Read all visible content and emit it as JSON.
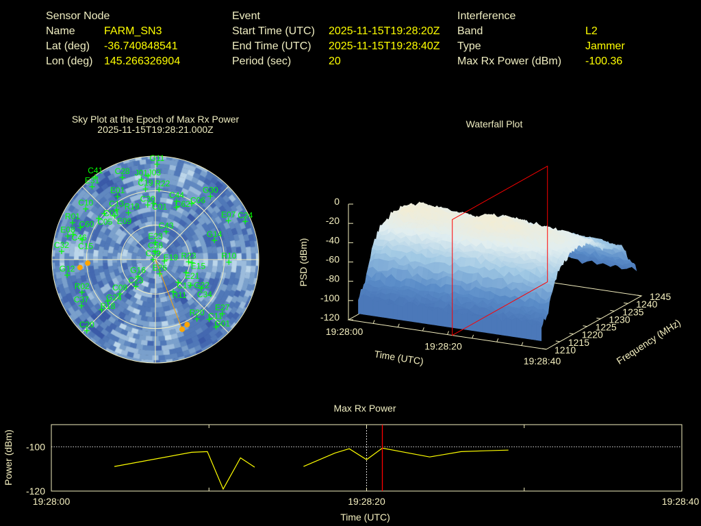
{
  "header": {
    "sensor_node": {
      "title": "Sensor Node",
      "rows": [
        {
          "label": "Name",
          "value": "FARM_SN3"
        },
        {
          "label": "Lat (deg)",
          "value": "-36.740848541"
        },
        {
          "label": "Lon (deg)",
          "value": "145.266326904"
        }
      ]
    },
    "event": {
      "title": "Event",
      "rows": [
        {
          "label": "Start Time (UTC)",
          "value": "2025-11-15T19:28:20Z"
        },
        {
          "label": "End Time (UTC)",
          "value": "2025-11-15T19:28:40Z"
        },
        {
          "label": "Period (sec)",
          "value": "20"
        }
      ]
    },
    "interference": {
      "title": "Interference",
      "rows": [
        {
          "label": "Band",
          "value": "L2"
        },
        {
          "label": "Type",
          "value": "Jammer"
        },
        {
          "label": "Max Rx Power (dBm)",
          "value": "-100.36"
        }
      ]
    }
  },
  "colors": {
    "label": "#f0eec2",
    "value": "#ffff00",
    "sat": "#00ff00",
    "jammer": "#ffa500",
    "marker": "#ff0000",
    "line": "#ffff00"
  },
  "chart_data": [
    {
      "type": "scatter",
      "title": "Sky Plot at the Epoch of Max Rx Power",
      "subtitle": "2025-11-15T19:28:21.000Z",
      "coords": "azimuth/elevation (deg)",
      "rings_el": [
        0,
        30,
        60
      ],
      "heatmap_palette": [
        "#3a5aa8",
        "#4468b0",
        "#5078b8",
        "#6088c0",
        "#7aa0cc",
        "#9cbcdc",
        "#bcd6ea"
      ],
      "satellites": [
        {
          "id": "G11",
          "az": 1,
          "el": 7
        },
        {
          "id": "C41",
          "az": 324,
          "el": 1
        },
        {
          "id": "E31",
          "az": 319,
          "el": 6
        },
        {
          "id": "C28",
          "az": 338,
          "el": 13
        },
        {
          "id": "J01",
          "az": 350,
          "el": 19
        },
        {
          "id": "J03",
          "az": 355,
          "el": 17
        },
        {
          "id": "C19",
          "az": 352,
          "el": 28
        },
        {
          "id": "R22",
          "az": 3,
          "el": 29
        },
        {
          "id": "E01",
          "az": 329,
          "el": 26
        },
        {
          "id": "C30",
          "az": 352,
          "el": 42
        },
        {
          "id": "C01",
          "az": 358,
          "el": 41
        },
        {
          "id": "C44",
          "az": 20,
          "el": 36
        },
        {
          "id": "C62",
          "az": 22,
          "el": 41
        },
        {
          "id": "C06",
          "az": 33,
          "el": 32
        },
        {
          "id": "G30",
          "az": 41,
          "el": 17
        },
        {
          "id": "C10",
          "az": 306,
          "el": 15
        },
        {
          "id": "C13",
          "az": 322,
          "el": 35
        },
        {
          "id": "C03",
          "az": 312,
          "el": 30
        },
        {
          "id": "C05",
          "az": 306,
          "el": 29
        },
        {
          "id": "E09",
          "az": 317,
          "el": 38
        },
        {
          "id": "R19",
          "az": 330,
          "el": 43
        },
        {
          "id": "R01",
          "az": 294,
          "el": 11
        },
        {
          "id": "E08",
          "az": 285,
          "el": 11
        },
        {
          "id": "C46",
          "az": 287,
          "el": 15
        },
        {
          "id": "C60",
          "az": 293,
          "el": 19
        },
        {
          "id": "C15",
          "az": 285,
          "el": 24
        },
        {
          "id": "C32",
          "az": 275,
          "el": 8
        },
        {
          "id": "E07",
          "az": 62,
          "el": 18
        },
        {
          "id": "C24",
          "az": 67,
          "el": 5
        },
        {
          "id": "C43",
          "az": 21,
          "el": 64
        },
        {
          "id": "E23",
          "az": 0,
          "el": 75
        },
        {
          "id": "C58",
          "az": 0,
          "el": 83
        },
        {
          "id": "C39",
          "az": 270,
          "el": 88
        },
        {
          "id": "E19",
          "az": 99,
          "el": 82
        },
        {
          "id": "R23",
          "az": 94,
          "el": 61
        },
        {
          "id": "E15",
          "az": 95,
          "el": 58
        },
        {
          "id": "R10",
          "az": 92,
          "el": 26
        },
        {
          "id": "E26",
          "az": 163,
          "el": 77
        },
        {
          "id": "E21",
          "az": 113,
          "el": 61
        },
        {
          "id": "G16",
          "az": 226,
          "el": 69
        },
        {
          "id": "C23",
          "az": 216,
          "el": 61
        },
        {
          "id": "G14",
          "az": 72,
          "el": 36
        },
        {
          "id": "C17",
          "az": 135,
          "el": 62
        },
        {
          "id": "G22",
          "az": 126,
          "el": 52
        },
        {
          "id": "C34",
          "az": 122,
          "el": 43
        },
        {
          "id": "R11",
          "az": 151,
          "el": 58
        },
        {
          "id": "R02",
          "az": 246,
          "el": 20
        },
        {
          "id": "C09",
          "az": 226,
          "el": 47
        },
        {
          "id": "G24",
          "az": 229,
          "el": 35
        },
        {
          "id": "C37",
          "az": 238,
          "el": 14
        },
        {
          "id": "R18",
          "az": 227,
          "el": 26
        },
        {
          "id": "C20",
          "az": 224,
          "el": 4
        },
        {
          "id": "G12",
          "az": 260,
          "el": 12
        },
        {
          "id": "R20",
          "az": 145,
          "el": 27
        },
        {
          "id": "E27",
          "az": 129,
          "el": 15
        },
        {
          "id": "C11",
          "az": 138,
          "el": 20
        },
        {
          "id": "G01",
          "az": 138,
          "el": 11
        }
      ],
      "jammer_points": [
        {
          "az": 264,
          "el": 24
        },
        {
          "az": 267,
          "el": 31
        },
        {
          "az": 159,
          "el": 25
        },
        {
          "az": 154,
          "el": 27
        }
      ],
      "jammer_direction": {
        "az": 159,
        "el": 25
      }
    },
    {
      "type": "surface",
      "title": "Waterfall Plot",
      "xlabel": "Time (UTC)",
      "ylabel": "Frequency (MHz)",
      "zlabel": "PSD (dBm)",
      "x_ticks": [
        "19:28:00",
        "19:28:20",
        "19:28:40"
      ],
      "xlim_sec": [
        0,
        40
      ],
      "y_ticks": [
        "1210",
        "1215",
        "1220",
        "1225",
        "1230",
        "1235",
        "1240",
        "1245"
      ],
      "ylim": [
        1210,
        1245
      ],
      "z_ticks": [
        "0",
        "-20",
        "-40",
        "-60",
        "-80",
        "-100",
        "-120"
      ],
      "zlim": [
        -120,
        0
      ],
      "time_range_sec": [
        2,
        39
      ],
      "freq_profile": {
        "freq": [
          1210,
          1212.5,
          1215,
          1217.5,
          1220,
          1222.5,
          1225,
          1227.5,
          1230,
          1232.5,
          1235,
          1237.5,
          1240,
          1242.5,
          1245
        ],
        "psd_dbm": [
          -95,
          -82,
          -48,
          -32,
          -26,
          -22,
          -22,
          -25,
          -30,
          -40,
          -45,
          -50,
          -56,
          -76,
          -92
        ]
      },
      "time_offset": {
        "t_sec": [
          0,
          5,
          10,
          15,
          20,
          25,
          30,
          35,
          40
        ],
        "offset_db": [
          -10,
          0,
          -3,
          -6,
          0,
          -2,
          -5,
          -9,
          -15
        ]
      },
      "marker_time_sec": 21
    },
    {
      "type": "line",
      "title": "Max Rx Power",
      "xlabel": "Time (UTC)",
      "ylabel": "Power (dBm)",
      "x_ticks": [
        "19:28:00",
        "19:28:20",
        "19:28:40"
      ],
      "xlim_sec": [
        0,
        40
      ],
      "y_ticks": [
        "-100",
        "-120"
      ],
      "ylim": [
        -120,
        -90
      ],
      "segments": [
        [
          [
            4.0,
            -108.9
          ],
          [
            8.9,
            -102.5
          ],
          [
            9.9,
            -102.2
          ],
          [
            10.9,
            -119.1
          ],
          [
            12.0,
            -105.0
          ],
          [
            12.9,
            -109.2
          ]
        ],
        [
          [
            16.0,
            -108.9
          ],
          [
            18.0,
            -102.8
          ],
          [
            18.9,
            -100.9
          ],
          [
            20.0,
            -105.8
          ],
          [
            21.0,
            -100.6
          ],
          [
            24.0,
            -104.6
          ],
          [
            26.0,
            -102.2
          ],
          [
            27.5,
            -101.8
          ],
          [
            29.0,
            -101.5
          ]
        ]
      ],
      "marker_time_sec": 21
    }
  ]
}
